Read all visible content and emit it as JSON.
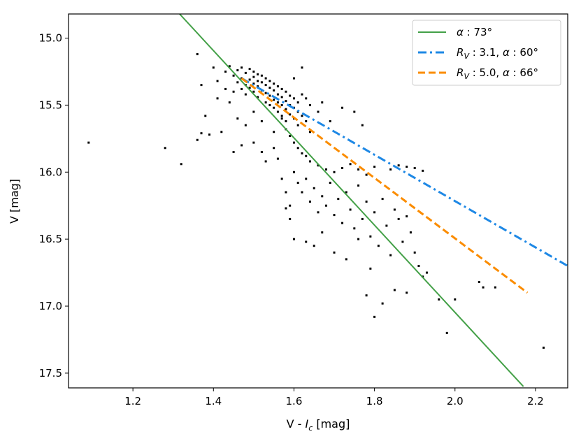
{
  "chart_data": {
    "type": "scatter",
    "xlabel_main": "V - ",
    "xlabel_sym": "I",
    "xlabel_sub": "c",
    "xlabel_unit": " [mag]",
    "ylabel": "V [mag]",
    "xlim": [
      1.04,
      2.28
    ],
    "ylim": [
      17.61,
      14.82
    ],
    "y_inverted": true,
    "xticks": [
      1.2,
      1.4,
      1.6,
      1.8,
      2.0,
      2.2
    ],
    "xtick_labels": [
      "1.2",
      "1.4",
      "1.6",
      "1.8",
      "2.0",
      "2.2"
    ],
    "yticks": [
      15.0,
      15.5,
      16.0,
      16.5,
      17.0,
      17.5
    ],
    "ytick_labels": [
      "15.0",
      "15.5",
      "16.0",
      "16.5",
      "17.0",
      "17.5"
    ],
    "legend_position": "top-right",
    "series": [
      {
        "name": "alpha73",
        "kind": "line",
        "style": "solid",
        "color": "#43a047",
        "label_parts": [
          "α",
          " : 73°"
        ],
        "x": [
          1.316,
          2.17
        ],
        "y": [
          14.82,
          17.6
        ]
      },
      {
        "name": "rv31",
        "kind": "line",
        "style": "dashdot",
        "color": "#1e88e5",
        "label_parts": [
          "R",
          "V",
          " : 3.1, ",
          "α",
          " : 60°"
        ],
        "x": [
          1.47,
          2.28
        ],
        "y": [
          15.3,
          16.7
        ]
      },
      {
        "name": "rv50",
        "kind": "line",
        "style": "dashed",
        "color": "#fb8c00",
        "label_parts": [
          "R",
          "V",
          " : 5.0, ",
          "α",
          " : 66°"
        ],
        "x": [
          1.47,
          2.18
        ],
        "y": [
          15.3,
          16.9
        ]
      },
      {
        "name": "stars",
        "kind": "scatter",
        "color": "#000000",
        "points": [
          [
            1.09,
            15.78
          ],
          [
            1.28,
            15.82
          ],
          [
            1.32,
            15.94
          ],
          [
            1.36,
            15.12
          ],
          [
            1.37,
            15.35
          ],
          [
            1.38,
            15.58
          ],
          [
            1.39,
            15.72
          ],
          [
            1.36,
            15.76
          ],
          [
            1.37,
            15.71
          ],
          [
            1.4,
            15.22
          ],
          [
            1.41,
            15.32
          ],
          [
            1.41,
            15.45
          ],
          [
            1.43,
            15.25
          ],
          [
            1.43,
            15.38
          ],
          [
            1.44,
            15.21
          ],
          [
            1.44,
            15.48
          ],
          [
            1.45,
            15.28
          ],
          [
            1.45,
            15.4
          ],
          [
            1.46,
            15.24
          ],
          [
            1.46,
            15.33
          ],
          [
            1.47,
            15.22
          ],
          [
            1.47,
            15.3
          ],
          [
            1.47,
            15.38
          ],
          [
            1.48,
            15.26
          ],
          [
            1.48,
            15.35
          ],
          [
            1.48,
            15.42
          ],
          [
            1.49,
            15.23
          ],
          [
            1.49,
            15.31
          ],
          [
            1.49,
            15.37
          ],
          [
            1.5,
            15.25
          ],
          [
            1.5,
            15.29
          ],
          [
            1.5,
            15.34
          ],
          [
            1.5,
            15.4
          ],
          [
            1.51,
            15.27
          ],
          [
            1.51,
            15.32
          ],
          [
            1.51,
            15.36
          ],
          [
            1.51,
            15.44
          ],
          [
            1.52,
            15.28
          ],
          [
            1.52,
            15.33
          ],
          [
            1.52,
            15.39
          ],
          [
            1.53,
            15.3
          ],
          [
            1.53,
            15.35
          ],
          [
            1.53,
            15.41
          ],
          [
            1.53,
            15.48
          ],
          [
            1.54,
            15.32
          ],
          [
            1.54,
            15.37
          ],
          [
            1.54,
            15.43
          ],
          [
            1.54,
            15.5
          ],
          [
            1.55,
            15.34
          ],
          [
            1.55,
            15.39
          ],
          [
            1.55,
            15.46
          ],
          [
            1.55,
            15.52
          ],
          [
            1.56,
            15.36
          ],
          [
            1.56,
            15.42
          ],
          [
            1.56,
            15.48
          ],
          [
            1.56,
            15.55
          ],
          [
            1.57,
            15.38
          ],
          [
            1.57,
            15.44
          ],
          [
            1.57,
            15.5
          ],
          [
            1.57,
            15.58
          ],
          [
            1.58,
            15.4
          ],
          [
            1.58,
            15.47
          ],
          [
            1.58,
            15.53
          ],
          [
            1.58,
            15.62
          ],
          [
            1.59,
            15.43
          ],
          [
            1.59,
            15.5
          ],
          [
            1.59,
            15.57
          ],
          [
            1.6,
            15.45
          ],
          [
            1.6,
            15.52
          ],
          [
            1.6,
            15.6
          ],
          [
            1.61,
            15.48
          ],
          [
            1.61,
            15.55
          ],
          [
            1.61,
            15.65
          ],
          [
            1.62,
            15.42
          ],
          [
            1.62,
            15.58
          ],
          [
            1.63,
            15.45
          ],
          [
            1.63,
            15.62
          ],
          [
            1.64,
            15.5
          ],
          [
            1.64,
            15.7
          ],
          [
            1.66,
            15.55
          ],
          [
            1.67,
            15.48
          ],
          [
            1.69,
            15.62
          ],
          [
            1.72,
            15.52
          ],
          [
            1.75,
            15.55
          ],
          [
            1.77,
            15.65
          ],
          [
            1.6,
            15.3
          ],
          [
            1.62,
            15.22
          ],
          [
            1.57,
            15.6
          ],
          [
            1.58,
            15.68
          ],
          [
            1.59,
            15.73
          ],
          [
            1.6,
            15.78
          ],
          [
            1.61,
            15.82
          ],
          [
            1.62,
            15.86
          ],
          [
            1.63,
            15.88
          ],
          [
            1.64,
            15.92
          ],
          [
            1.66,
            15.95
          ],
          [
            1.68,
            15.98
          ],
          [
            1.7,
            16.0
          ],
          [
            1.72,
            15.97
          ],
          [
            1.74,
            15.94
          ],
          [
            1.76,
            15.98
          ],
          [
            1.78,
            16.02
          ],
          [
            1.8,
            15.96
          ],
          [
            1.84,
            15.98
          ],
          [
            1.86,
            15.95
          ],
          [
            1.88,
            15.96
          ],
          [
            1.9,
            15.97
          ],
          [
            1.92,
            15.99
          ],
          [
            1.6,
            16.0
          ],
          [
            1.61,
            16.08
          ],
          [
            1.62,
            16.15
          ],
          [
            1.63,
            16.05
          ],
          [
            1.64,
            16.22
          ],
          [
            1.65,
            16.12
          ],
          [
            1.66,
            16.3
          ],
          [
            1.67,
            16.18
          ],
          [
            1.68,
            16.25
          ],
          [
            1.69,
            16.08
          ],
          [
            1.7,
            16.32
          ],
          [
            1.71,
            16.2
          ],
          [
            1.72,
            16.38
          ],
          [
            1.73,
            16.15
          ],
          [
            1.74,
            16.28
          ],
          [
            1.75,
            16.42
          ],
          [
            1.76,
            16.1
          ],
          [
            1.77,
            16.35
          ],
          [
            1.78,
            16.22
          ],
          [
            1.79,
            16.48
          ],
          [
            1.8,
            16.3
          ],
          [
            1.81,
            16.55
          ],
          [
            1.82,
            16.2
          ],
          [
            1.83,
            16.4
          ],
          [
            1.84,
            16.62
          ],
          [
            1.85,
            16.28
          ],
          [
            1.86,
            16.35
          ],
          [
            1.87,
            16.52
          ],
          [
            1.88,
            16.33
          ],
          [
            1.89,
            16.45
          ],
          [
            1.9,
            16.6
          ],
          [
            1.91,
            16.7
          ],
          [
            1.92,
            16.78
          ],
          [
            1.93,
            16.75
          ],
          [
            1.96,
            16.95
          ],
          [
            1.98,
            17.2
          ],
          [
            2.0,
            16.95
          ],
          [
            2.06,
            16.82
          ],
          [
            2.07,
            16.86
          ],
          [
            2.1,
            16.86
          ],
          [
            2.22,
            17.31
          ],
          [
            1.78,
            16.92
          ],
          [
            1.8,
            17.08
          ],
          [
            1.82,
            16.98
          ],
          [
            1.85,
            16.88
          ],
          [
            1.88,
            16.9
          ],
          [
            1.5,
            15.78
          ],
          [
            1.52,
            15.85
          ],
          [
            1.53,
            15.92
          ],
          [
            1.55,
            15.7
          ],
          [
            1.57,
            16.05
          ],
          [
            1.58,
            16.15
          ],
          [
            1.59,
            16.25
          ],
          [
            1.6,
            16.5
          ],
          [
            1.63,
            16.52
          ],
          [
            1.65,
            16.55
          ],
          [
            1.67,
            16.45
          ],
          [
            1.7,
            16.6
          ],
          [
            1.73,
            16.65
          ],
          [
            1.76,
            16.5
          ],
          [
            1.79,
            16.72
          ],
          [
            1.48,
            15.65
          ],
          [
            1.47,
            15.8
          ],
          [
            1.45,
            15.85
          ],
          [
            1.46,
            15.6
          ],
          [
            1.42,
            15.7
          ],
          [
            1.5,
            15.55
          ],
          [
            1.52,
            15.62
          ],
          [
            1.55,
            15.82
          ],
          [
            1.56,
            15.9
          ],
          [
            1.58,
            16.27
          ],
          [
            1.59,
            16.35
          ]
        ]
      }
    ]
  }
}
